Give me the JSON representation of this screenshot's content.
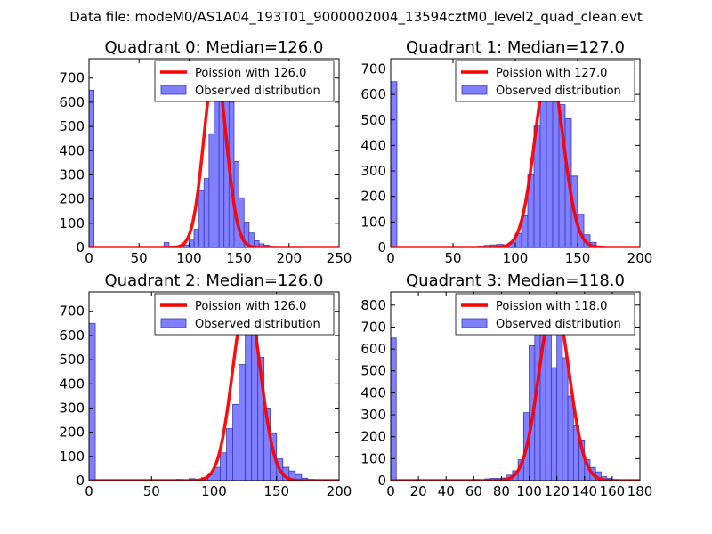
{
  "figure_title": "Data file: modeM0/AS1A04_193T01_9000002004_13594cztM0_level2_quad_clean.evt",
  "colors": {
    "bar_fill": "#7f7fff",
    "bar_edge": "#3a3ab0",
    "poisson_line": "#ff0000"
  },
  "chart_data": [
    {
      "type": "bar",
      "title": "Quadrant 0: Median=126.0",
      "legend": [
        "Poission with 126.0",
        "Observed distribution"
      ],
      "legend_location": "upper right",
      "xlim": [
        0,
        250
      ],
      "ylim": [
        0,
        780
      ],
      "xticks": [
        0,
        50,
        100,
        150,
        200,
        250
      ],
      "yticks": [
        0,
        100,
        200,
        300,
        400,
        500,
        600,
        700
      ],
      "poisson_mean": 126,
      "poisson_peak": 745,
      "bin_width": 5,
      "bins": [
        [
          0,
          650
        ],
        [
          75,
          20
        ],
        [
          80,
          5
        ],
        [
          90,
          8
        ],
        [
          95,
          10
        ],
        [
          100,
          35
        ],
        [
          105,
          75
        ],
        [
          110,
          235
        ],
        [
          115,
          285
        ],
        [
          120,
          470
        ],
        [
          125,
          610
        ],
        [
          130,
          690
        ],
        [
          135,
          610
        ],
        [
          140,
          600
        ],
        [
          145,
          355
        ],
        [
          150,
          205
        ],
        [
          155,
          105
        ],
        [
          160,
          60
        ],
        [
          165,
          28
        ],
        [
          170,
          15
        ],
        [
          175,
          10
        ],
        [
          180,
          5
        ],
        [
          185,
          3
        ],
        [
          190,
          2
        ]
      ]
    },
    {
      "type": "bar",
      "title": "Quadrant 1: Median=127.0",
      "legend": [
        "Poission with 127.0",
        "Observed distribution"
      ],
      "legend_location": "upper right",
      "xlim": [
        0,
        200
      ],
      "ylim": [
        0,
        740
      ],
      "xticks": [
        0,
        50,
        100,
        150,
        200
      ],
      "yticks": [
        0,
        100,
        200,
        300,
        400,
        500,
        600,
        700
      ],
      "poisson_mean": 127,
      "poisson_peak": 710,
      "bin_width": 5,
      "bins": [
        [
          0,
          650
        ],
        [
          70,
          5
        ],
        [
          75,
          8
        ],
        [
          80,
          10
        ],
        [
          85,
          12
        ],
        [
          90,
          10
        ],
        [
          95,
          20
        ],
        [
          100,
          55
        ],
        [
          105,
          125
        ],
        [
          110,
          285
        ],
        [
          115,
          480
        ],
        [
          120,
          600
        ],
        [
          125,
          700
        ],
        [
          130,
          640
        ],
        [
          135,
          560
        ],
        [
          140,
          505
        ],
        [
          145,
          280
        ],
        [
          150,
          130
        ],
        [
          155,
          50
        ],
        [
          160,
          20
        ],
        [
          165,
          5
        ]
      ]
    },
    {
      "type": "bar",
      "title": "Quadrant 2: Median=126.0",
      "legend": [
        "Poission with 126.0",
        "Observed distribution"
      ],
      "legend_location": "upper right",
      "xlim": [
        0,
        200
      ],
      "ylim": [
        0,
        780
      ],
      "xticks": [
        0,
        50,
        100,
        150,
        200
      ],
      "yticks": [
        0,
        100,
        200,
        300,
        400,
        500,
        600,
        700
      ],
      "poisson_mean": 126,
      "poisson_peak": 745,
      "bin_width": 5,
      "bins": [
        [
          0,
          650
        ],
        [
          70,
          5
        ],
        [
          80,
          8
        ],
        [
          90,
          12
        ],
        [
          95,
          25
        ],
        [
          100,
          55
        ],
        [
          105,
          115
        ],
        [
          110,
          215
        ],
        [
          115,
          315
        ],
        [
          120,
          480
        ],
        [
          125,
          675
        ],
        [
          130,
          650
        ],
        [
          135,
          510
        ],
        [
          140,
          300
        ],
        [
          145,
          195
        ],
        [
          150,
          90
        ],
        [
          155,
          55
        ],
        [
          160,
          40
        ],
        [
          165,
          25
        ],
        [
          170,
          10
        ],
        [
          175,
          5
        ],
        [
          180,
          3
        ],
        [
          185,
          2
        ]
      ]
    },
    {
      "type": "bar",
      "title": "Quadrant 3: Median=118.0",
      "legend": [
        "Poission with 118.0",
        "Observed distribution"
      ],
      "legend_location": "upper right",
      "xlim": [
        0,
        180
      ],
      "ylim": [
        0,
        860
      ],
      "xticks": [
        0,
        20,
        40,
        60,
        80,
        100,
        120,
        140,
        160,
        180
      ],
      "yticks": [
        0,
        100,
        200,
        300,
        400,
        500,
        600,
        700,
        800
      ],
      "poisson_mean": 118,
      "poisson_peak": 815,
      "bin_width": 4,
      "bins": [
        [
          0,
          650
        ],
        [
          60,
          5
        ],
        [
          68,
          8
        ],
        [
          72,
          10
        ],
        [
          76,
          10
        ],
        [
          80,
          12
        ],
        [
          84,
          25
        ],
        [
          88,
          45
        ],
        [
          92,
          95
        ],
        [
          96,
          310
        ],
        [
          100,
          615
        ],
        [
          104,
          735
        ],
        [
          108,
          665
        ],
        [
          112,
          815
        ],
        [
          116,
          515
        ],
        [
          120,
          800
        ],
        [
          124,
          560
        ],
        [
          128,
          385
        ],
        [
          132,
          250
        ],
        [
          136,
          185
        ],
        [
          140,
          95
        ],
        [
          144,
          60
        ],
        [
          148,
          40
        ],
        [
          152,
          18
        ],
        [
          156,
          10
        ],
        [
          160,
          5
        ]
      ]
    }
  ]
}
